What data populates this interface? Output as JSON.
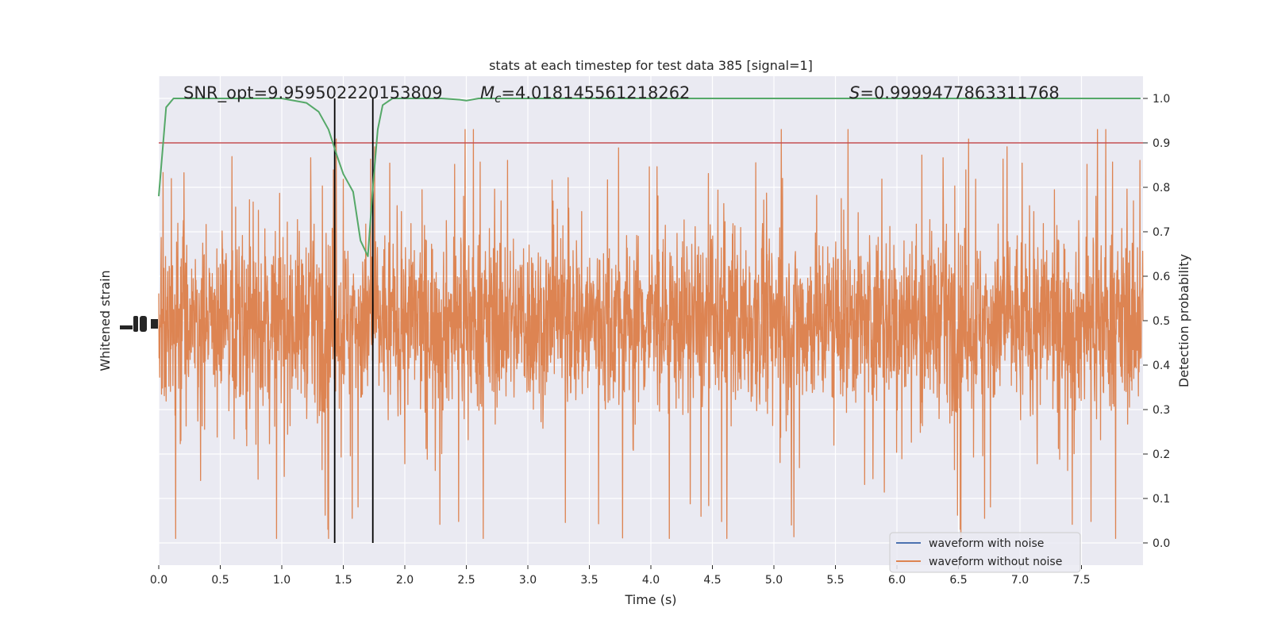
{
  "chart_data": {
    "type": "line",
    "title": "stats at each timestep for test data 385 [signal=1]",
    "xlabel": "Time (s)",
    "ylabel_left": "Whitened strain",
    "ylabel_right": "Detection probability",
    "xlim": [
      0,
      8.0
    ],
    "ylim_right": [
      -0.05,
      1.05
    ],
    "x_ticks": [
      "0.0",
      "0.5",
      "1.0",
      "1.5",
      "2.0",
      "2.5",
      "3.0",
      "3.5",
      "4.0",
      "4.5",
      "5.0",
      "5.5",
      "6.0",
      "6.5",
      "7.0",
      "7.5"
    ],
    "x_tick_values": [
      0.0,
      0.5,
      1.0,
      1.5,
      2.0,
      2.5,
      3.0,
      3.5,
      4.0,
      4.5,
      5.0,
      5.5,
      6.0,
      6.5,
      7.0,
      7.5
    ],
    "y_ticks_right": [
      "0.0",
      "0.1",
      "0.2",
      "0.3",
      "0.4",
      "0.5",
      "0.6",
      "0.7",
      "0.8",
      "0.9",
      "1.0"
    ],
    "y_tick_values_right": [
      0.0,
      0.1,
      0.2,
      0.3,
      0.4,
      0.5,
      0.6,
      0.7,
      0.8,
      0.9,
      1.0
    ],
    "grid": true,
    "legend_position": "lower-right",
    "annotations": {
      "snr": "SNR_opt=9.959502220153809",
      "mc_symbol": "M",
      "mc_sub": "c",
      "mc_value": "=4.018145561218262",
      "s_symbol": "S",
      "s_value": "=0.9999477863311768"
    },
    "threshold": 0.9,
    "markers": [
      1.43,
      1.74
    ],
    "series": [
      {
        "name": "waveform with noise",
        "color": "#4c72b0"
      },
      {
        "name": "waveform without noise",
        "color": "#dd8452"
      },
      {
        "color": "#55a868",
        "x": [
          0.0,
          0.06,
          0.12,
          0.2,
          0.5,
          1.0,
          1.2,
          1.3,
          1.38,
          1.45,
          1.5,
          1.58,
          1.64,
          1.7,
          1.74,
          1.78,
          1.82,
          1.9,
          2.0,
          2.3,
          2.45,
          2.5,
          2.6,
          3.0,
          4.0,
          5.0,
          6.0,
          7.0,
          7.98
        ],
        "y": [
          0.78,
          0.98,
          1.0,
          1.0,
          1.0,
          1.0,
          0.99,
          0.97,
          0.93,
          0.87,
          0.83,
          0.79,
          0.68,
          0.645,
          0.8,
          0.93,
          0.985,
          1.0,
          1.0,
          1.0,
          0.997,
          0.995,
          1.0,
          1.0,
          1.0,
          1.0,
          1.0,
          1.0,
          1.0
        ]
      }
    ]
  },
  "colors": {
    "plot_bg": "#eaeaf2",
    "grid": "#ffffff",
    "threshold": "#c44e52",
    "marker": "#000000"
  }
}
